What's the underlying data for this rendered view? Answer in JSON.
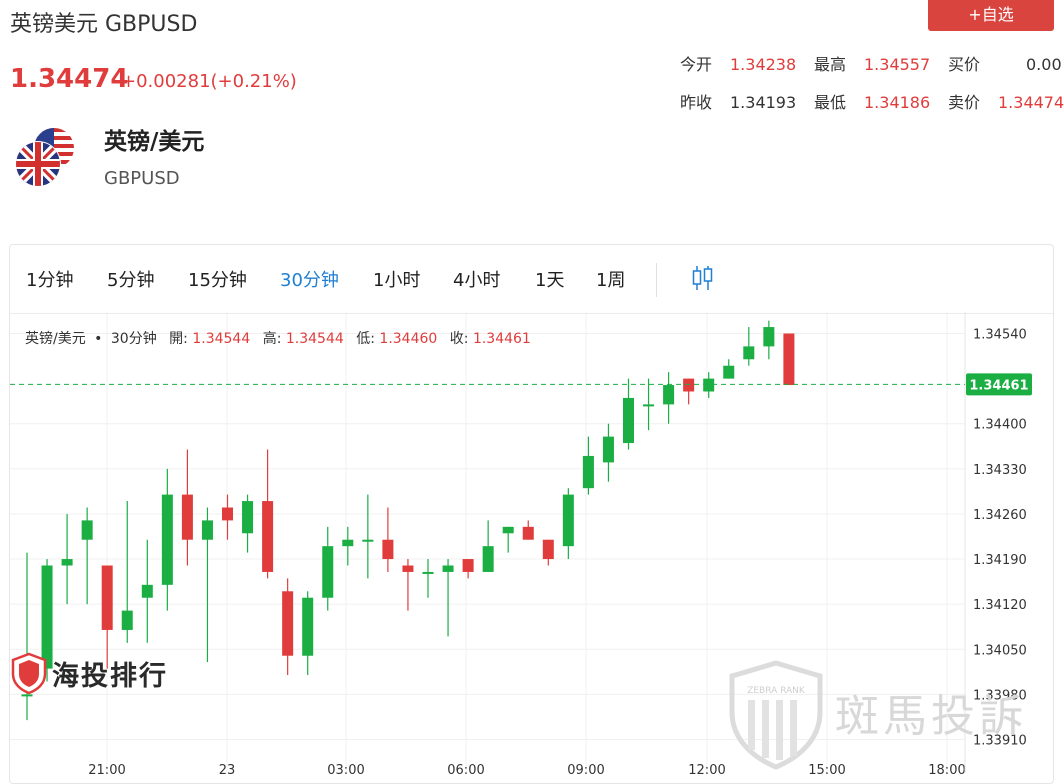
{
  "header": {
    "title": "英镑美元 GBPUSD",
    "add_watch": "+自选",
    "price": "1.34474",
    "change": "+0.00281(+0.21%)"
  },
  "quote": {
    "open_label": "今开",
    "open": "1.34238",
    "high_label": "最高",
    "high": "1.34557",
    "bid_label": "买价",
    "bid": "0.00",
    "prev_close_label": "昨收",
    "prev_close": "1.34193",
    "low_label": "最低",
    "low": "1.34186",
    "ask_label": "卖价",
    "ask": "1.34474"
  },
  "instrument": {
    "name_cn": "英镑/美元",
    "name_en": "GBPUSD"
  },
  "timeframes": [
    {
      "label": "1分钟"
    },
    {
      "label": "5分钟"
    },
    {
      "label": "15分钟"
    },
    {
      "label": "30分钟",
      "active": true
    },
    {
      "label": "1小时"
    },
    {
      "label": "4小时"
    },
    {
      "label": "1天"
    },
    {
      "label": "1周"
    }
  ],
  "legend": {
    "symbol": "英镑/美元",
    "sep": "•",
    "period": "30分钟",
    "open_label": "開:",
    "open": "1.34544",
    "high_label": "高:",
    "high": "1.34544",
    "low_label": "低:",
    "low": "1.34460",
    "close_label": "收:",
    "close": "1.34461"
  },
  "watermarks": {
    "left": "海投排行",
    "right": "斑馬投訴",
    "badge": "ZEBRA RANK"
  },
  "colors": {
    "up": "#1aae43",
    "down": "#e03c3c",
    "accent": "#1f7fd3",
    "last_price": "#1aae43"
  },
  "chart_data": {
    "type": "candlestick",
    "ylim": [
      1.3388,
      1.3459
    ],
    "yticks": [
      "1.34540",
      "1.34400",
      "1.34330",
      "1.34260",
      "1.34190",
      "1.34120",
      "1.34050",
      "1.33980",
      "1.33910"
    ],
    "xticks": [
      "21:00",
      "23",
      "03:00",
      "06:00",
      "09:00",
      "12:00",
      "15:00",
      "18:00"
    ],
    "last_price": "1.34461",
    "candles": [
      {
        "o": 1.3398,
        "h": 1.342,
        "l": 1.3394,
        "c": 1.3398
      },
      {
        "o": 1.3402,
        "h": 1.3419,
        "l": 1.34,
        "c": 1.3418
      },
      {
        "o": 1.3418,
        "h": 1.3426,
        "l": 1.3412,
        "c": 1.3419
      },
      {
        "o": 1.3422,
        "h": 1.3427,
        "l": 1.3412,
        "c": 1.3425
      },
      {
        "o": 1.3418,
        "h": 1.3418,
        "l": 1.3402,
        "c": 1.3408
      },
      {
        "o": 1.3408,
        "h": 1.3428,
        "l": 1.3406,
        "c": 1.3411
      },
      {
        "o": 1.3413,
        "h": 1.3422,
        "l": 1.3406,
        "c": 1.3415
      },
      {
        "o": 1.3415,
        "h": 1.3433,
        "l": 1.3411,
        "c": 1.3429
      },
      {
        "o": 1.3429,
        "h": 1.3436,
        "l": 1.3418,
        "c": 1.3422
      },
      {
        "o": 1.3422,
        "h": 1.3427,
        "l": 1.3403,
        "c": 1.3425
      },
      {
        "o": 1.3427,
        "h": 1.3429,
        "l": 1.3422,
        "c": 1.3425
      },
      {
        "o": 1.3423,
        "h": 1.3429,
        "l": 1.342,
        "c": 1.3428
      },
      {
        "o": 1.3428,
        "h": 1.3436,
        "l": 1.3416,
        "c": 1.3417
      },
      {
        "o": 1.3414,
        "h": 1.3416,
        "l": 1.3401,
        "c": 1.3404
      },
      {
        "o": 1.3404,
        "h": 1.3414,
        "l": 1.3401,
        "c": 1.3413
      },
      {
        "o": 1.3413,
        "h": 1.3424,
        "l": 1.3411,
        "c": 1.3421
      },
      {
        "o": 1.3421,
        "h": 1.3424,
        "l": 1.3418,
        "c": 1.3422
      },
      {
        "o": 1.3422,
        "h": 1.3429,
        "l": 1.3416,
        "c": 1.3422
      },
      {
        "o": 1.3422,
        "h": 1.3427,
        "l": 1.3417,
        "c": 1.3419
      },
      {
        "o": 1.3418,
        "h": 1.3419,
        "l": 1.3411,
        "c": 1.3417
      },
      {
        "o": 1.3417,
        "h": 1.3419,
        "l": 1.3413,
        "c": 1.3417
      },
      {
        "o": 1.3417,
        "h": 1.3419,
        "l": 1.3407,
        "c": 1.3418
      },
      {
        "o": 1.3419,
        "h": 1.3419,
        "l": 1.3416,
        "c": 1.3417
      },
      {
        "o": 1.3417,
        "h": 1.3425,
        "l": 1.3417,
        "c": 1.3421
      },
      {
        "o": 1.3423,
        "h": 1.3424,
        "l": 1.342,
        "c": 1.3424
      },
      {
        "o": 1.3424,
        "h": 1.3425,
        "l": 1.3422,
        "c": 1.3422
      },
      {
        "o": 1.3422,
        "h": 1.3422,
        "l": 1.3418,
        "c": 1.3419
      },
      {
        "o": 1.3421,
        "h": 1.343,
        "l": 1.3419,
        "c": 1.3429
      },
      {
        "o": 1.343,
        "h": 1.3438,
        "l": 1.3429,
        "c": 1.3435
      },
      {
        "o": 1.3434,
        "h": 1.344,
        "l": 1.3431,
        "c": 1.3438
      },
      {
        "o": 1.3437,
        "h": 1.3447,
        "l": 1.3436,
        "c": 1.3444
      },
      {
        "o": 1.3443,
        "h": 1.3447,
        "l": 1.3439,
        "c": 1.3443
      },
      {
        "o": 1.3443,
        "h": 1.3448,
        "l": 1.344,
        "c": 1.3446
      },
      {
        "o": 1.3447,
        "h": 1.3447,
        "l": 1.3443,
        "c": 1.3445
      },
      {
        "o": 1.3445,
        "h": 1.3448,
        "l": 1.3444,
        "c": 1.3447
      },
      {
        "o": 1.3447,
        "h": 1.345,
        "l": 1.3447,
        "c": 1.3449
      },
      {
        "o": 1.345,
        "h": 1.3455,
        "l": 1.3449,
        "c": 1.3452
      },
      {
        "o": 1.3452,
        "h": 1.3456,
        "l": 1.345,
        "c": 1.3455
      },
      {
        "o": 1.3454,
        "h": 1.3454,
        "l": 1.3446,
        "c": 1.3446
      }
    ]
  }
}
